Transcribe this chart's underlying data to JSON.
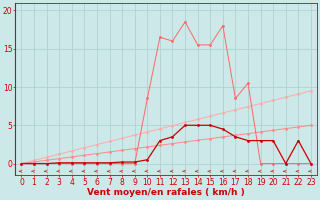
{
  "bg_color": "#cce8e8",
  "grid_color": "#aacece",
  "xlabel": "Vent moyen/en rafales ( km/h )",
  "x_ticks": [
    0,
    1,
    2,
    3,
    4,
    5,
    6,
    7,
    8,
    9,
    10,
    11,
    12,
    13,
    14,
    15,
    16,
    17,
    18,
    19,
    20,
    21,
    22,
    23
  ],
  "y_ticks": [
    0,
    5,
    10,
    15,
    20
  ],
  "ylim": [
    -1.5,
    21
  ],
  "xlim": [
    -0.5,
    23.5
  ],
  "line_light1_color": "#ffaaaa",
  "line_light1_y": [
    0,
    0.41,
    0.83,
    1.24,
    1.65,
    2.07,
    2.48,
    2.89,
    3.3,
    3.72,
    4.13,
    4.54,
    4.96,
    5.37,
    5.78,
    6.19,
    6.61,
    7.02,
    7.43,
    7.84,
    8.26,
    8.67,
    9.08,
    9.5
  ],
  "line_light2_color": "#ff8888",
  "line_light2_y": [
    0,
    0.22,
    0.43,
    0.65,
    0.87,
    1.09,
    1.3,
    1.52,
    1.74,
    1.96,
    2.17,
    2.39,
    2.61,
    2.83,
    3.04,
    3.26,
    3.48,
    3.7,
    3.91,
    4.13,
    4.35,
    4.57,
    4.78,
    5.0
  ],
  "line_dark_color": "#cc0000",
  "line_dark_y": [
    0,
    0,
    0,
    0.1,
    0.1,
    0.1,
    0.1,
    0.1,
    0.2,
    0.2,
    0.5,
    3.0,
    3.5,
    5.0,
    5.0,
    5.0,
    4.5,
    3.5,
    3.0,
    3.0,
    3.0,
    0,
    3.0,
    0
  ],
  "line_peak_color": "#ff6666",
  "line_peak_y": [
    0,
    0,
    0,
    0,
    0,
    0,
    0,
    0,
    0,
    0,
    8.5,
    16.5,
    16.0,
    18.5,
    15.5,
    15.5,
    18.0,
    8.5,
    10.5,
    0,
    0,
    0,
    0,
    0
  ],
  "marker_size": 2.0,
  "lw_thin": 0.7,
  "lw_medium": 0.9,
  "axis_fontsize": 5.5,
  "xlabel_fontsize": 6.5,
  "arrow_color": "#cc2222"
}
